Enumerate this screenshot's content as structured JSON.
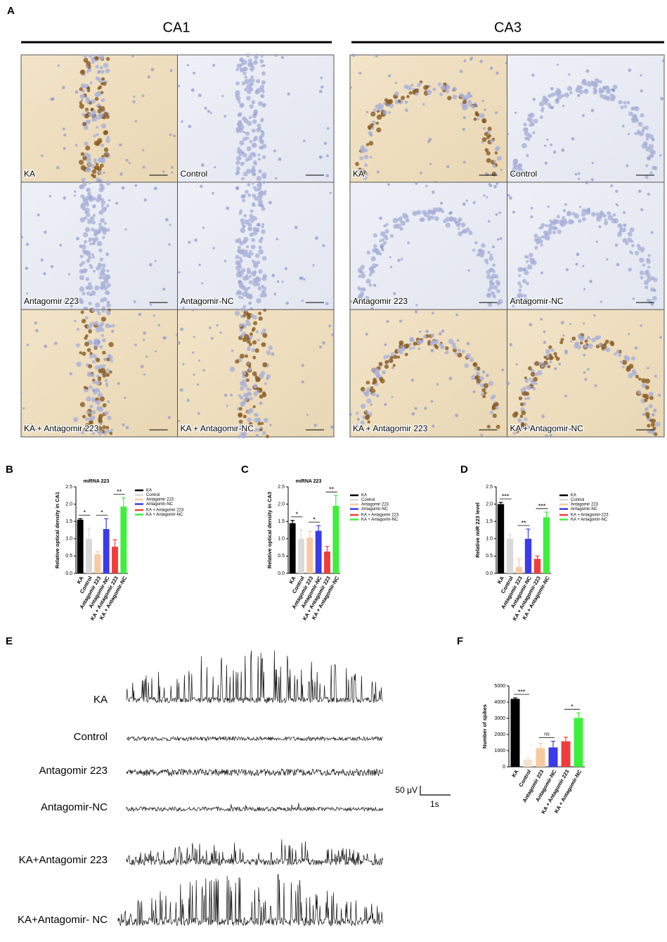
{
  "panel_a": {
    "label": "A",
    "regions": [
      {
        "title": "CA1",
        "images": [
          "KA",
          "Control",
          "Antagomir 223",
          "Antagomir-NC",
          "KA + Antagomir 223",
          "KA + Antagomir-NC"
        ]
      },
      {
        "title": "CA3",
        "images": [
          "KA",
          "Control",
          "Antagomir 223",
          "Antagomir-NC",
          "KA + Antagomir 223",
          "KA + Antagomir-NC"
        ]
      }
    ]
  },
  "chart_data": [
    {
      "type": "bar",
      "label": "B",
      "title": "miRNA 223",
      "y_label": "Relative optical density in CA1",
      "categories": [
        "KA",
        "Control",
        "Antagomir 223",
        "Antagomir-NC",
        "KA + Antagomir 223",
        "KA + Antagomir-NC"
      ],
      "values": [
        1.55,
        1.0,
        0.55,
        1.28,
        0.77,
        1.93
      ],
      "errors": [
        0.03,
        0.3,
        0.08,
        0.3,
        0.2,
        0.25
      ],
      "colors": [
        "#000000",
        "#d9d9d9",
        "#f8c99f",
        "#3b3bea",
        "#f23c3c",
        "#3cf03c"
      ],
      "ylim": [
        0,
        2.5
      ],
      "yticks": [
        {
          "value": 0,
          "label": "0.0"
        },
        0.5,
        {
          "value": 1,
          "label": "1.0"
        },
        1.5,
        {
          "value": 2,
          "label": "2.0"
        },
        2.5
      ],
      "legend": true,
      "annotations": [
        {
          "text": "*",
          "from": "KA",
          "to": "Control"
        },
        {
          "text": "*",
          "from": "Antagomir 223",
          "to": "Antagomir-NC"
        },
        {
          "text": "**",
          "from": "KA + Antagomir 223",
          "to": "KA + Antagomir-NC"
        }
      ]
    },
    {
      "type": "bar",
      "label": "C",
      "title": "miRNA 223",
      "y_label": "Relative optical density in CA3",
      "categories": [
        "KA",
        "Control",
        "Antagomir 223",
        "Antagomir-NC",
        "KA + Antagomir 223",
        "KA + Antagomir-NC"
      ],
      "values": [
        1.45,
        1.0,
        1.03,
        1.23,
        0.63,
        1.95
      ],
      "errors": [
        0.08,
        0.25,
        0.18,
        0.15,
        0.15,
        0.3
      ],
      "colors": [
        "#000000",
        "#d9d9d9",
        "#f8c99f",
        "#3b3bea",
        "#f23c3c",
        "#3cf03c"
      ],
      "ylim": [
        0,
        2.5
      ],
      "yticks": [
        {
          "value": 0,
          "label": "0.0"
        },
        0.5,
        {
          "value": 1,
          "label": "1.0"
        },
        1.5,
        {
          "value": 2,
          "label": "2.0"
        },
        2.5
      ],
      "legend": true,
      "annotations": [
        {
          "text": "*",
          "from": "KA",
          "to": "Control"
        },
        {
          "text": "*",
          "from": "Antagomir 223",
          "to": "Antagomir-NC"
        },
        {
          "text": "**",
          "from": "KA + Antagomir 223",
          "to": "KA + Antagomir-NC"
        }
      ]
    },
    {
      "type": "bar",
      "label": "D",
      "y_label": "Relative miR 223  level",
      "categories": [
        "KA",
        "Control",
        "Antagomir 223",
        "Antagomir-NC",
        "KA + Antagomir-223",
        "KA + Antagomir-NC"
      ],
      "values": [
        2.0,
        1.0,
        0.18,
        1.0,
        0.42,
        1.62
      ],
      "errors": [
        0.05,
        0.12,
        0.25,
        0.28,
        0.08,
        0.15
      ],
      "colors": [
        "#000000",
        "#d9d9d9",
        "#f8c99f",
        "#3b3bea",
        "#f23c3c",
        "#3cf03c"
      ],
      "ylim": [
        0,
        2.5
      ],
      "yticks": [
        {
          "value": 0,
          "label": "0.0"
        },
        0.5,
        {
          "value": 1,
          "label": "1.0"
        },
        1.5,
        {
          "value": 2,
          "label": "2.0"
        },
        2.5
      ],
      "legend": true,
      "annotations": [
        {
          "text": "***",
          "from": "KA",
          "to": "Control"
        },
        {
          "text": "**",
          "from": "Antagomir 223",
          "to": "Antagomir-NC"
        },
        {
          "text": "***",
          "from": "KA + Antagomir-223",
          "to": "KA + Antagomir-NC"
        }
      ]
    },
    {
      "type": "bar",
      "label": "F",
      "y_label": "Number of spikes",
      "categories": [
        "KA",
        "Control",
        "Antagomir 223",
        "Antagomir-NC",
        "KA + Antagomir 223",
        "KA + Antagomir-NC"
      ],
      "values": [
        4200,
        450,
        1150,
        1200,
        1580,
        3020
      ],
      "errors": [
        60,
        120,
        300,
        380,
        250,
        320
      ],
      "colors": [
        "#000000",
        "#f5e3d0",
        "#f8c99f",
        "#3b3bea",
        "#f23c3c",
        "#3cf03c"
      ],
      "ylim": [
        0,
        5000
      ],
      "yticks": [
        0,
        1000,
        2000,
        3000,
        4000,
        5000
      ],
      "legend": false,
      "annotations": [
        {
          "text": "***",
          "from": "KA",
          "to": "Control"
        },
        {
          "text": "ns",
          "from": "Antagomir 223",
          "to": "Antagomir-NC"
        },
        {
          "text": "*",
          "from": "KA + Antagomir 223",
          "to": "KA + Antagomir-NC"
        }
      ]
    }
  ],
  "panel_e": {
    "label": "E",
    "traces": [
      "KA",
      "Control",
      "Antagomir 223",
      "Antagomir-NC",
      "KA+Antagomir 223",
      "KA+Antagomir- NC"
    ],
    "scale_bar": {
      "voltage": "50 μV",
      "time": "1s"
    }
  }
}
